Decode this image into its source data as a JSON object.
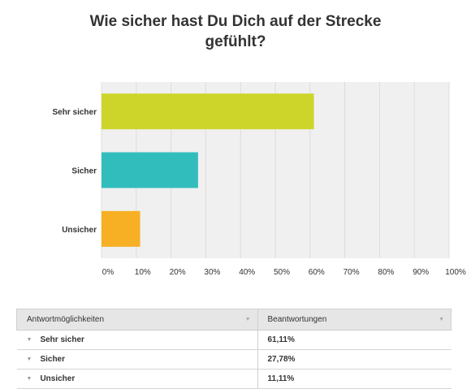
{
  "chart_data": {
    "type": "bar",
    "orientation": "horizontal",
    "title": "Wie sicher hast Du Dich auf der Strecke gefühlt?",
    "title_lines": [
      "Wie sicher hast Du Dich auf der Strecke",
      "gefühlt?"
    ],
    "categories": [
      "Sehr sicher",
      "Sicher",
      "Unsicher"
    ],
    "values": [
      61.11,
      27.78,
      11.11
    ],
    "colors": [
      "#cdd52a",
      "#32bdbd",
      "#f7af24"
    ],
    "xlim": [
      0,
      100
    ],
    "xticks": [
      0,
      10,
      20,
      30,
      40,
      50,
      60,
      70,
      80,
      90,
      100
    ],
    "xtick_labels": [
      "0%",
      "10%",
      "20%",
      "30%",
      "40%",
      "50%",
      "60%",
      "70%",
      "80%",
      "90%",
      "100%"
    ],
    "grid": true,
    "plot_background": "#f0f0f0"
  },
  "table": {
    "headers": [
      "Antwortmöglichkeiten",
      "Beantwortungen"
    ],
    "rows": [
      {
        "label": "Sehr sicher",
        "value": "61,11%"
      },
      {
        "label": "Sicher",
        "value": "27,78%"
      },
      {
        "label": "Unsicher",
        "value": "11,11%"
      }
    ]
  }
}
